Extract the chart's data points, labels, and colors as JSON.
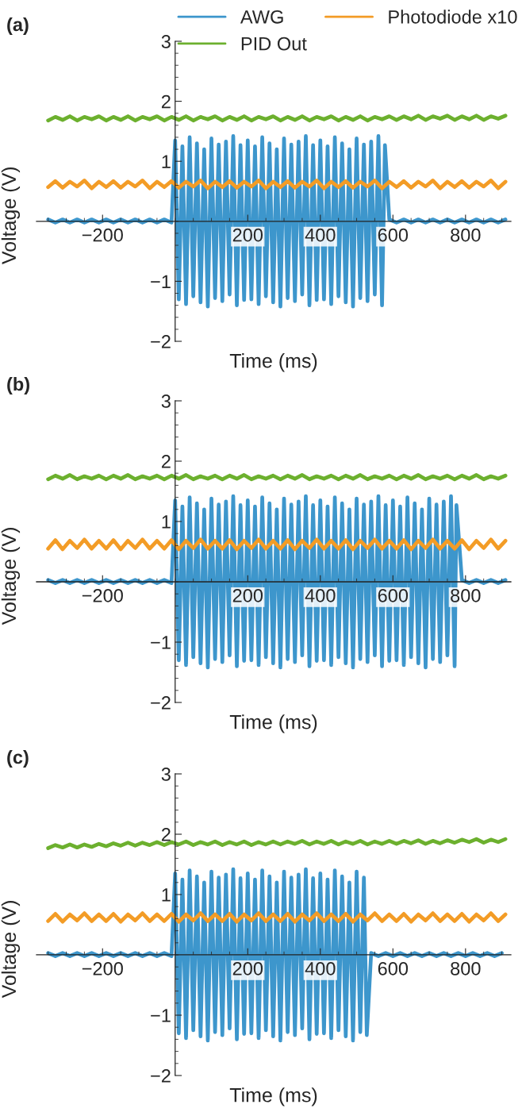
{
  "chart_data": [
    {
      "type": "line",
      "title": "(a)",
      "xlabel": "Time (ms)",
      "ylabel": "Voltage (V)",
      "legend": "top right",
      "xlim": [
        -382,
        925
      ],
      "ylim": [
        -2,
        3
      ],
      "xticks": [
        -200,
        200,
        400,
        600,
        800
      ],
      "yticks": [
        -2,
        -1,
        1,
        2,
        3
      ],
      "x": [
        -350,
        -330,
        -310,
        -290,
        -270,
        -250,
        -230,
        -210,
        -190,
        -170,
        -150,
        -130,
        -110,
        -90,
        -70,
        -50,
        -30,
        -10,
        10,
        30,
        50,
        70,
        90,
        110,
        130,
        150,
        170,
        190,
        210,
        230,
        250,
        270,
        290,
        310,
        330,
        350,
        370,
        390,
        410,
        430,
        450,
        470,
        490,
        510,
        530,
        550,
        570,
        590,
        610,
        630,
        650,
        670,
        690,
        710,
        730,
        750,
        770,
        790,
        810,
        830,
        850,
        870,
        890,
        910
      ],
      "series": [
        {
          "name": "AWG",
          "color": "#3d96cc",
          "x": [
            -350,
            -330,
            -310,
            -290,
            -270,
            -250,
            -230,
            -210,
            -190,
            -170,
            -150,
            -130,
            -110,
            -90,
            -70,
            -50,
            -30,
            -10,
            0,
            10,
            20,
            30,
            40,
            50,
            60,
            70,
            80,
            90,
            100,
            110,
            120,
            130,
            140,
            150,
            160,
            170,
            180,
            190,
            200,
            210,
            220,
            230,
            240,
            250,
            260,
            270,
            280,
            290,
            300,
            310,
            320,
            330,
            340,
            350,
            360,
            370,
            380,
            390,
            400,
            410,
            420,
            430,
            440,
            450,
            460,
            470,
            480,
            490,
            500,
            510,
            520,
            530,
            540,
            550,
            560,
            570,
            578,
            590,
            610,
            630,
            650,
            670,
            690,
            710,
            730,
            750,
            770,
            790,
            810,
            830,
            850,
            870,
            890,
            910
          ],
          "values": [
            0.03,
            -0.02,
            0.03,
            -0.02,
            0.03,
            -0.02,
            0.03,
            -0.02,
            0.03,
            -0.02,
            0.03,
            -0.02,
            0.03,
            -0.02,
            0.03,
            -0.02,
            0.03,
            -0.02,
            1.35,
            -1.3,
            1.25,
            -1.38,
            1.4,
            -1.25,
            1.3,
            -1.35,
            1.2,
            -1.42,
            1.38,
            -1.28,
            1.28,
            -1.33,
            1.33,
            -1.22,
            1.42,
            -1.4,
            1.27,
            -1.31,
            1.35,
            -1.3,
            1.25,
            -1.38,
            1.4,
            -1.25,
            1.3,
            -1.35,
            1.2,
            -1.42,
            1.38,
            -1.28,
            1.28,
            -1.33,
            1.33,
            -1.22,
            1.42,
            -1.4,
            1.27,
            -1.31,
            1.35,
            -1.3,
            1.25,
            -1.38,
            1.4,
            -1.25,
            1.3,
            -1.35,
            1.2,
            -1.42,
            1.38,
            -1.28,
            1.28,
            -1.33,
            1.33,
            -1.22,
            1.42,
            -1.4,
            1.27,
            0.03,
            -0.02,
            0.03,
            -0.02,
            0.03,
            -0.02,
            0.03,
            -0.02,
            0.03,
            -0.02,
            0.03,
            -0.02,
            0.03,
            -0.02,
            0.03,
            -0.02,
            0.03
          ]
        },
        {
          "name": "Photodiode x10",
          "color": "#f39c26",
          "values": [
            0.57,
            0.67,
            0.56,
            0.66,
            0.58,
            0.68,
            0.55,
            0.66,
            0.57,
            0.67,
            0.56,
            0.66,
            0.58,
            0.68,
            0.55,
            0.66,
            0.57,
            0.67,
            0.56,
            0.66,
            0.58,
            0.68,
            0.55,
            0.66,
            0.57,
            0.67,
            0.56,
            0.66,
            0.58,
            0.68,
            0.55,
            0.66,
            0.57,
            0.67,
            0.56,
            0.66,
            0.58,
            0.68,
            0.55,
            0.66,
            0.57,
            0.67,
            0.56,
            0.66,
            0.58,
            0.68,
            0.55,
            0.66,
            0.57,
            0.67,
            0.56,
            0.66,
            0.58,
            0.68,
            0.55,
            0.66,
            0.57,
            0.67,
            0.56,
            0.66,
            0.58,
            0.68,
            0.55,
            0.66
          ]
        },
        {
          "name": "PID Out",
          "color": "#6cb02e",
          "values": [
            1.68,
            1.74,
            1.69,
            1.75,
            1.68,
            1.74,
            1.7,
            1.75,
            1.68,
            1.74,
            1.69,
            1.75,
            1.68,
            1.74,
            1.7,
            1.75,
            1.68,
            1.74,
            1.69,
            1.75,
            1.68,
            1.74,
            1.7,
            1.75,
            1.68,
            1.74,
            1.69,
            1.75,
            1.68,
            1.74,
            1.7,
            1.75,
            1.68,
            1.74,
            1.69,
            1.75,
            1.68,
            1.74,
            1.7,
            1.75,
            1.68,
            1.74,
            1.69,
            1.75,
            1.68,
            1.74,
            1.7,
            1.75,
            1.69,
            1.75,
            1.7,
            1.76,
            1.69,
            1.75,
            1.71,
            1.76,
            1.69,
            1.75,
            1.7,
            1.76,
            1.69,
            1.75,
            1.71,
            1.76
          ]
        }
      ]
    },
    {
      "type": "line",
      "title": "(b)",
      "xlabel": "Time (ms)",
      "ylabel": "Voltage (V)",
      "xlim": [
        -382,
        925
      ],
      "ylim": [
        -2,
        3
      ],
      "xticks": [
        -200,
        200,
        400,
        600,
        800
      ],
      "yticks": [
        -2,
        -1,
        1,
        2,
        3
      ],
      "x": [
        -350,
        -330,
        -310,
        -290,
        -270,
        -250,
        -230,
        -210,
        -190,
        -170,
        -150,
        -130,
        -110,
        -90,
        -70,
        -50,
        -30,
        -10,
        10,
        30,
        50,
        70,
        90,
        110,
        130,
        150,
        170,
        190,
        210,
        230,
        250,
        270,
        290,
        310,
        330,
        350,
        370,
        390,
        410,
        430,
        450,
        470,
        490,
        510,
        530,
        550,
        570,
        590,
        610,
        630,
        650,
        670,
        690,
        710,
        730,
        750,
        770,
        790,
        810,
        830,
        850,
        870,
        890,
        910
      ],
      "series": [
        {
          "color": "#3d96cc",
          "x": [
            -350,
            -330,
            -310,
            -290,
            -270,
            -250,
            -230,
            -210,
            -190,
            -170,
            -150,
            -130,
            -110,
            -90,
            -70,
            -50,
            -30,
            -10,
            0,
            10,
            20,
            30,
            40,
            50,
            60,
            70,
            80,
            90,
            100,
            110,
            120,
            130,
            140,
            150,
            160,
            170,
            180,
            190,
            200,
            210,
            220,
            230,
            240,
            250,
            260,
            270,
            280,
            290,
            300,
            310,
            320,
            330,
            340,
            350,
            360,
            370,
            380,
            390,
            400,
            410,
            420,
            430,
            440,
            450,
            460,
            470,
            480,
            490,
            500,
            510,
            520,
            530,
            540,
            550,
            560,
            570,
            580,
            590,
            600,
            610,
            620,
            630,
            640,
            650,
            660,
            670,
            680,
            690,
            700,
            710,
            720,
            730,
            740,
            750,
            760,
            770,
            775,
            790,
            810,
            830,
            850,
            870,
            890,
            910
          ],
          "values": [
            0.03,
            -0.02,
            0.03,
            -0.02,
            0.03,
            -0.02,
            0.03,
            -0.02,
            0.03,
            -0.02,
            0.03,
            -0.02,
            0.03,
            -0.02,
            0.03,
            -0.02,
            0.03,
            -0.02,
            1.35,
            -1.3,
            1.25,
            -1.38,
            1.4,
            -1.25,
            1.3,
            -1.35,
            1.2,
            -1.42,
            1.38,
            -1.28,
            1.28,
            -1.33,
            1.33,
            -1.22,
            1.42,
            -1.4,
            1.27,
            -1.31,
            1.35,
            -1.3,
            1.25,
            -1.38,
            1.4,
            -1.25,
            1.3,
            -1.35,
            1.2,
            -1.42,
            1.38,
            -1.28,
            1.28,
            -1.33,
            1.33,
            -1.22,
            1.42,
            -1.4,
            1.27,
            -1.31,
            1.35,
            -1.3,
            1.25,
            -1.38,
            1.4,
            -1.25,
            1.3,
            -1.35,
            1.2,
            -1.42,
            1.38,
            -1.28,
            1.28,
            -1.33,
            1.33,
            -1.22,
            1.42,
            -1.4,
            1.27,
            -1.31,
            1.35,
            -1.3,
            1.25,
            -1.38,
            1.4,
            -1.25,
            1.3,
            -1.35,
            1.2,
            -1.42,
            1.38,
            -1.28,
            1.28,
            -1.33,
            1.33,
            -1.22,
            1.42,
            -1.4,
            1.27,
            0.03,
            -0.02,
            0.03,
            -0.02,
            0.03,
            -0.02,
            0.03
          ]
        },
        {
          "color": "#f39c26",
          "values": [
            0.55,
            0.69,
            0.54,
            0.68,
            0.56,
            0.7,
            0.55,
            0.68,
            0.55,
            0.69,
            0.54,
            0.68,
            0.56,
            0.7,
            0.55,
            0.68,
            0.55,
            0.69,
            0.54,
            0.68,
            0.56,
            0.7,
            0.55,
            0.68,
            0.55,
            0.69,
            0.54,
            0.68,
            0.56,
            0.7,
            0.55,
            0.68,
            0.55,
            0.69,
            0.54,
            0.68,
            0.56,
            0.7,
            0.55,
            0.68,
            0.55,
            0.69,
            0.54,
            0.68,
            0.56,
            0.7,
            0.55,
            0.68,
            0.55,
            0.69,
            0.54,
            0.68,
            0.56,
            0.7,
            0.55,
            0.68,
            0.55,
            0.69,
            0.54,
            0.68,
            0.56,
            0.7,
            0.55,
            0.68
          ]
        },
        {
          "color": "#6cb02e",
          "values": [
            1.7,
            1.76,
            1.71,
            1.77,
            1.7,
            1.75,
            1.71,
            1.76,
            1.7,
            1.76,
            1.71,
            1.77,
            1.7,
            1.75,
            1.71,
            1.76,
            1.7,
            1.76,
            1.71,
            1.77,
            1.7,
            1.75,
            1.71,
            1.76,
            1.7,
            1.76,
            1.71,
            1.77,
            1.7,
            1.75,
            1.71,
            1.76,
            1.7,
            1.76,
            1.71,
            1.77,
            1.7,
            1.75,
            1.71,
            1.76,
            1.7,
            1.76,
            1.71,
            1.77,
            1.7,
            1.75,
            1.71,
            1.76,
            1.7,
            1.76,
            1.71,
            1.77,
            1.7,
            1.75,
            1.71,
            1.76,
            1.7,
            1.76,
            1.71,
            1.77,
            1.7,
            1.75,
            1.71,
            1.76
          ]
        }
      ]
    },
    {
      "type": "line",
      "title": "(c)",
      "xlabel": "Time (ms)",
      "ylabel": "Voltage (V)",
      "xlim": [
        -382,
        925
      ],
      "ylim": [
        -2,
        3
      ],
      "xticks": [
        -200,
        200,
        400,
        600,
        800
      ],
      "yticks": [
        -2,
        -1,
        1,
        2,
        3
      ],
      "x": [
        -350,
        -330,
        -310,
        -290,
        -270,
        -250,
        -230,
        -210,
        -190,
        -170,
        -150,
        -130,
        -110,
        -90,
        -70,
        -50,
        -30,
        -10,
        10,
        30,
        50,
        70,
        90,
        110,
        130,
        150,
        170,
        190,
        210,
        230,
        250,
        270,
        290,
        310,
        330,
        350,
        370,
        390,
        410,
        430,
        450,
        470,
        490,
        510,
        530,
        550,
        570,
        590,
        610,
        630,
        650,
        670,
        690,
        710,
        730,
        750,
        770,
        790,
        810,
        830,
        850,
        870,
        890,
        910
      ],
      "series": [
        {
          "color": "#3d96cc",
          "x": [
            -350,
            -330,
            -310,
            -290,
            -270,
            -250,
            -230,
            -210,
            -190,
            -170,
            -150,
            -130,
            -110,
            -90,
            -70,
            -50,
            -30,
            -10,
            0,
            10,
            20,
            30,
            40,
            50,
            60,
            70,
            80,
            90,
            100,
            110,
            120,
            130,
            140,
            150,
            160,
            170,
            180,
            190,
            200,
            210,
            220,
            230,
            240,
            250,
            260,
            270,
            280,
            290,
            300,
            310,
            320,
            330,
            340,
            350,
            360,
            370,
            380,
            390,
            400,
            410,
            420,
            430,
            440,
            450,
            460,
            470,
            480,
            490,
            500,
            510,
            520,
            528,
            540,
            560,
            580,
            600,
            620,
            640,
            660,
            680,
            700,
            720,
            740,
            760,
            780,
            800,
            820,
            840,
            860,
            880,
            900
          ],
          "values": [
            0.03,
            -0.02,
            0.03,
            -0.02,
            0.03,
            -0.02,
            0.03,
            -0.02,
            0.03,
            -0.02,
            0.03,
            -0.02,
            0.03,
            -0.02,
            0.03,
            -0.02,
            0.03,
            -0.02,
            1.35,
            -1.3,
            1.25,
            -1.38,
            1.4,
            -1.25,
            1.3,
            -1.35,
            1.2,
            -1.42,
            1.38,
            -1.28,
            1.28,
            -1.33,
            1.33,
            -1.22,
            1.42,
            -1.4,
            1.27,
            -1.31,
            1.35,
            -1.3,
            1.25,
            -1.38,
            1.4,
            -1.25,
            1.3,
            -1.35,
            1.2,
            -1.42,
            1.38,
            -1.28,
            1.28,
            -1.33,
            1.33,
            -1.22,
            1.42,
            -1.4,
            1.27,
            -1.31,
            1.35,
            -1.3,
            1.25,
            -1.38,
            1.4,
            -1.25,
            1.3,
            -1.35,
            1.2,
            -1.42,
            1.38,
            -1.28,
            1.28,
            -1.33,
            0.03,
            -0.02,
            0.03,
            -0.02,
            0.03,
            -0.02,
            0.03,
            -0.02,
            0.03,
            -0.02,
            0.03,
            -0.02,
            0.03,
            -0.02,
            0.03,
            -0.02,
            0.03,
            -0.02,
            0.03
          ]
        },
        {
          "color": "#f39c26",
          "values": [
            0.56,
            0.68,
            0.55,
            0.67,
            0.57,
            0.69,
            0.56,
            0.67,
            0.56,
            0.68,
            0.55,
            0.67,
            0.57,
            0.69,
            0.56,
            0.67,
            0.56,
            0.68,
            0.55,
            0.67,
            0.57,
            0.69,
            0.56,
            0.67,
            0.56,
            0.68,
            0.55,
            0.67,
            0.57,
            0.69,
            0.56,
            0.67,
            0.56,
            0.68,
            0.55,
            0.67,
            0.57,
            0.69,
            0.56,
            0.67,
            0.56,
            0.68,
            0.55,
            0.67,
            0.57,
            0.69,
            0.56,
            0.67,
            0.56,
            0.68,
            0.55,
            0.67,
            0.57,
            0.69,
            0.56,
            0.67,
            0.56,
            0.68,
            0.55,
            0.67,
            0.57,
            0.69,
            0.56,
            0.67
          ]
        },
        {
          "color": "#6cb02e",
          "values": [
            1.77,
            1.82,
            1.78,
            1.83,
            1.78,
            1.83,
            1.79,
            1.84,
            1.8,
            1.85,
            1.81,
            1.86,
            1.81,
            1.86,
            1.82,
            1.87,
            1.82,
            1.87,
            1.83,
            1.88,
            1.82,
            1.87,
            1.83,
            1.88,
            1.82,
            1.87,
            1.83,
            1.88,
            1.82,
            1.87,
            1.83,
            1.88,
            1.83,
            1.88,
            1.84,
            1.89,
            1.83,
            1.88,
            1.84,
            1.89,
            1.83,
            1.88,
            1.84,
            1.89,
            1.83,
            1.88,
            1.84,
            1.89,
            1.84,
            1.89,
            1.85,
            1.9,
            1.84,
            1.89,
            1.85,
            1.9,
            1.86,
            1.91,
            1.87,
            1.92,
            1.86,
            1.91,
            1.87,
            1.92
          ]
        }
      ]
    }
  ]
}
